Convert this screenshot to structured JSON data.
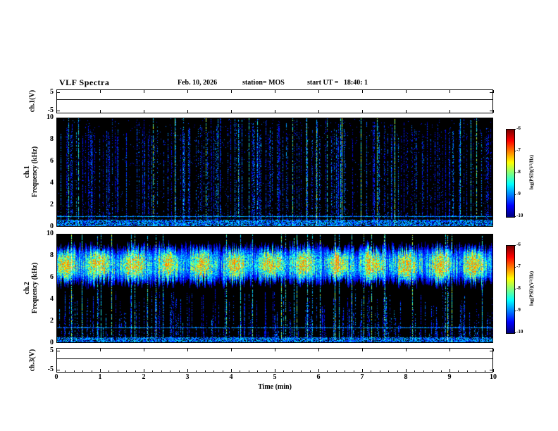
{
  "header": {
    "title": "VLF Spectra",
    "date": "Feb. 10, 2026",
    "station": "station= MOS",
    "start_ut": "start UT =   18:40: 1"
  },
  "x_axis": {
    "label": "Time (min)",
    "min": 0,
    "max": 10,
    "major_ticks": [
      0,
      1,
      2,
      3,
      4,
      5,
      6,
      7,
      8,
      9,
      10
    ],
    "tick_labels": [
      "0",
      "1",
      "2",
      "3",
      "4",
      "5",
      "6",
      "7",
      "8",
      "9",
      "10"
    ]
  },
  "chart_data": [
    {
      "id": "ch1_voltage",
      "type": "line",
      "ylabel": "ch.1(V)",
      "ylim": [
        -5,
        5
      ],
      "ytick_values": [
        5,
        -5
      ],
      "ytick_labels": [
        "5",
        "-5"
      ],
      "xlim": [
        0,
        10
      ],
      "flat_value": 1.2,
      "description": "flat waveform trace at near-constant voltage level"
    },
    {
      "id": "ch1_spectrogram",
      "type": "heatmap",
      "ylabel_lines": [
        "ch.1",
        "Frequency (kHz)"
      ],
      "ylim": [
        0,
        10
      ],
      "ytick_values": [
        10,
        8,
        6,
        4,
        2,
        0
      ],
      "ytick_labels": [
        "10",
        "8",
        "6",
        "4",
        "2",
        "0"
      ],
      "xlim": [
        0,
        10
      ],
      "colorbar": {
        "label": "log(PSD)(V²/Hz)",
        "max": -6,
        "min": -10,
        "tick_values": [
          -6,
          -7,
          -8,
          -9,
          -10
        ],
        "tick_labels": [
          "-6",
          "-7",
          "-8",
          "-9",
          "-10"
        ]
      },
      "appearance": {
        "background": "#000000",
        "colormap": "jet",
        "weak_streak_probability": 0.26,
        "bright_streak_probability": 0.03,
        "horizontal_lines_khz": [
          0.85
        ],
        "noise_band_top_khz": 0.55,
        "seed": 1234567
      },
      "description": "sparse impulsive vertical streaks (sferics) in blue/green on black background, low-frequency noise band near 0-0.6 kHz"
    },
    {
      "id": "ch2_spectrogram",
      "type": "heatmap",
      "ylabel_lines": [
        "ch.2",
        "Frequency (kHz)"
      ],
      "ylim": [
        0,
        10
      ],
      "ytick_values": [
        10,
        8,
        6,
        4,
        2,
        0
      ],
      "ytick_labels": [
        "10",
        "8",
        "6",
        "4",
        "2",
        "0"
      ],
      "xlim": [
        0,
        10
      ],
      "colorbar": {
        "label": "log(PSD)(V²/Hz)",
        "max": -6,
        "min": -10,
        "tick_values": [
          -6,
          -7,
          -8,
          -9,
          -10
        ],
        "tick_labels": [
          "-6",
          "-7",
          "-8",
          "-9",
          "-10"
        ]
      },
      "appearance": {
        "background": "#000000",
        "colormap": "jet",
        "band_center_khz": 7.2,
        "band_halfwidth_khz": 1.6,
        "weak_streak_probability": 0.32,
        "bright_streak_probability": 0.05,
        "horizontal_lines_khz": [
          1.3
        ],
        "noise_band_top_khz": 0.4,
        "seed": 987654
      },
      "description": "continuous cyan/green emission band between about 5.5 and 8.8 kHz across whole record, blue impulsive streaks below the band"
    },
    {
      "id": "ch3_voltage",
      "type": "line",
      "ylabel": "ch.3(V)",
      "ylim": [
        -5,
        5
      ],
      "ytick_values": [
        5,
        -5
      ],
      "ytick_labels": [
        "5",
        "-5"
      ],
      "xlim": [
        0,
        10
      ],
      "flat_value": 0.9,
      "description": "flat waveform trace at near-constant voltage level"
    }
  ]
}
